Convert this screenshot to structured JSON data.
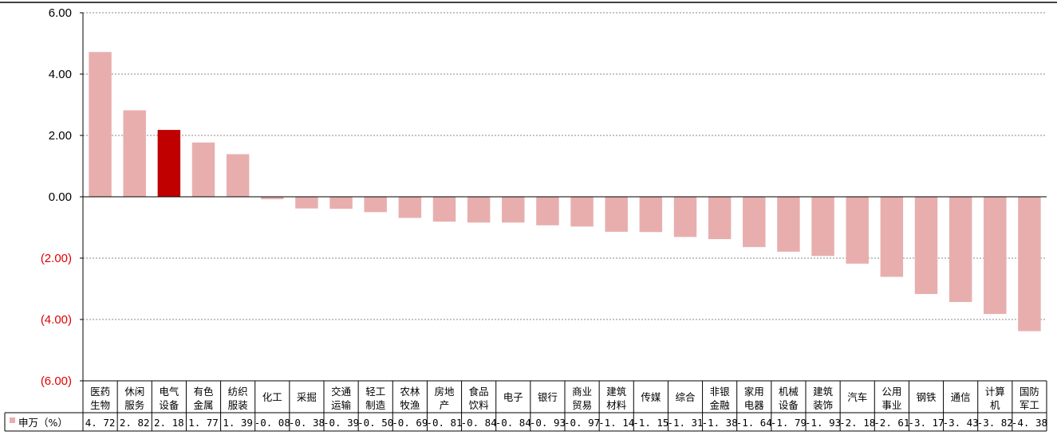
{
  "chart_data": {
    "type": "bar",
    "categories": [
      "医药\n生物",
      "休闲\n服务",
      "电气\n设备",
      "有色\n金属",
      "纺织\n服装",
      "化工",
      "采掘",
      "交通\n运输",
      "轻工\n制造",
      "农林\n牧渔",
      "房地\n产",
      "食品\n饮料",
      "电子",
      "银行",
      "商业\n贸易",
      "建筑\n材料",
      "传媒",
      "综合",
      "非银\n金融",
      "家用\n电器",
      "机械\n设备",
      "建筑\n装饰",
      "汽车",
      "公用\n事业",
      "钢铁",
      "通信",
      "计算\n机",
      "国防\n军工"
    ],
    "series": [
      {
        "name": "申万（%）",
        "values": [
          4.72,
          2.82,
          2.18,
          1.77,
          1.39,
          -0.08,
          -0.38,
          -0.39,
          -0.5,
          -0.69,
          -0.81,
          -0.84,
          -0.84,
          -0.93,
          -0.97,
          -1.14,
          -1.15,
          -1.31,
          -1.38,
          -1.64,
          -1.79,
          -1.93,
          -2.18,
          -2.61,
          -3.17,
          -3.43,
          -3.82,
          -4.38
        ],
        "value_labels": [
          "4. 72",
          "2. 82",
          "2. 18",
          "1. 77",
          "1. 39",
          "-0. 08",
          "-0. 38",
          "-0. 39",
          "-0. 50",
          "-0. 69",
          "-0. 81",
          "-0. 84",
          "-0. 84",
          "-0. 93",
          "-0. 97",
          "-1. 14",
          "-1. 15",
          "-1. 31",
          "-1. 38",
          "-1. 64",
          "-1. 79",
          "-1. 93",
          "-2. 18",
          "-2. 61",
          "-3. 17",
          "-3. 43",
          "-3. 82",
          "-4. 38"
        ]
      }
    ],
    "ylim": [
      -6,
      6
    ],
    "yticks": [
      6,
      4,
      2,
      0,
      -2,
      -4,
      -6
    ],
    "ytick_labels": [
      "6.00",
      "4.00",
      "2.00",
      "0.00",
      "(2.00)",
      "(4.00)",
      "(6.00)"
    ],
    "highlight_index": 2,
    "grid": true,
    "legend_position": "table-left",
    "colors": {
      "bar": "#e8aeae",
      "highlight": "#c00000",
      "negative_tick": "#e00000",
      "positive_tick": "#000000",
      "grid": "#888888"
    }
  }
}
